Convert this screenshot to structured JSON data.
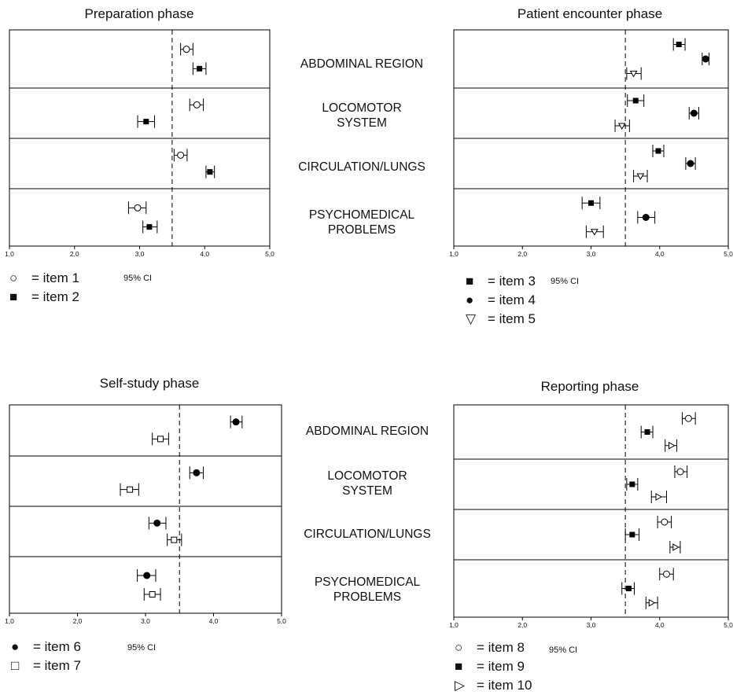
{
  "shared": {
    "categories": [
      "ABDOMINAL REGION",
      "LOCOMOTOR\nSYSTEM",
      "CIRCULATION/LUNGS",
      "PSYCHOMEDICAL\nPROBLEMS"
    ],
    "ci_label": "95% CI",
    "reference_line": 3.5
  },
  "chart_data": [
    {
      "type": "scatter",
      "title": "Preparation phase",
      "xlim": [
        1.0,
        5.0
      ],
      "xticks": [
        "1,0",
        "2,0",
        "3,0",
        "4,0",
        "5,0"
      ],
      "reference_line": 3.5,
      "categories": [
        "ABDOMINAL REGION",
        "LOCOMOTOR SYSTEM",
        "CIRCULATION/LUNGS",
        "PSYCHOMEDICAL PROBLEMS"
      ],
      "series": [
        {
          "name": "item 1",
          "marker": "circle-open",
          "values": [
            3.72,
            3.88,
            3.63,
            2.97
          ],
          "ci_low": [
            3.63,
            3.77,
            3.53,
            2.83
          ],
          "ci_high": [
            3.82,
            3.98,
            3.73,
            3.1
          ]
        },
        {
          "name": "item 2",
          "marker": "square-filled",
          "values": [
            3.92,
            3.1,
            4.08,
            3.15
          ],
          "ci_low": [
            3.82,
            2.97,
            4.02,
            3.05
          ],
          "ci_high": [
            4.02,
            3.23,
            4.15,
            3.27
          ]
        }
      ],
      "legend": [
        {
          "symbol": "○",
          "text": "= item 1"
        },
        {
          "symbol": "■",
          "text": "= item 2"
        }
      ]
    },
    {
      "type": "scatter",
      "title": "Patient encounter phase",
      "xlim": [
        1.0,
        5.0
      ],
      "xticks": [
        "1,0",
        "2,0",
        "3,0",
        "4,0",
        "5,0"
      ],
      "reference_line": 3.5,
      "categories": [
        "ABDOMINAL REGION",
        "LOCOMOTOR SYSTEM",
        "CIRCULATION/LUNGS",
        "PSYCHOMEDICAL PROBLEMS"
      ],
      "series": [
        {
          "name": "item 3",
          "marker": "square-filled",
          "values": [
            4.28,
            3.65,
            3.98,
            3.0
          ],
          "ci_low": [
            4.2,
            3.53,
            3.9,
            2.87
          ],
          "ci_high": [
            4.37,
            3.77,
            4.06,
            3.13
          ]
        },
        {
          "name": "item 4",
          "marker": "circle-filled",
          "values": [
            4.67,
            4.5,
            4.45,
            3.8
          ],
          "ci_low": [
            4.62,
            4.43,
            4.38,
            3.68
          ],
          "ci_high": [
            4.72,
            4.57,
            4.52,
            3.93
          ]
        },
        {
          "name": "item 5",
          "marker": "triangle-down-open",
          "values": [
            3.62,
            3.45,
            3.72,
            3.05
          ],
          "ci_low": [
            3.52,
            3.35,
            3.62,
            2.93
          ],
          "ci_high": [
            3.73,
            3.56,
            3.82,
            3.18
          ]
        }
      ],
      "legend": [
        {
          "symbol": "■",
          "text": "= item 3"
        },
        {
          "symbol": "●",
          "text": "= item 4"
        },
        {
          "symbol": "▽",
          "text": "= item 5"
        }
      ]
    },
    {
      "type": "scatter",
      "title": "Self-study phase",
      "xlim": [
        1.0,
        5.0
      ],
      "xticks": [
        "1,0",
        "2,0",
        "3,0",
        "4,0",
        "5,0"
      ],
      "reference_line": 3.5,
      "categories": [
        "ABDOMINAL REGION",
        "LOCOMOTOR SYSTEM",
        "CIRCULATION/LUNGS",
        "PSYCHOMEDICAL PROBLEMS"
      ],
      "series": [
        {
          "name": "item 6",
          "marker": "circle-filled",
          "values": [
            4.33,
            3.75,
            3.17,
            3.02
          ],
          "ci_low": [
            4.25,
            3.65,
            3.05,
            2.88
          ],
          "ci_high": [
            4.42,
            3.85,
            3.3,
            3.15
          ]
        },
        {
          "name": "item 7",
          "marker": "square-open",
          "values": [
            3.22,
            2.77,
            3.42,
            3.1
          ],
          "ci_low": [
            3.1,
            2.63,
            3.32,
            2.98
          ],
          "ci_high": [
            3.34,
            2.9,
            3.53,
            3.22
          ]
        }
      ],
      "legend": [
        {
          "symbol": "●",
          "text": "= item 6"
        },
        {
          "symbol": "□",
          "text": "= item 7"
        }
      ]
    },
    {
      "type": "scatter",
      "title": "Reporting phase",
      "xlim": [
        1.0,
        5.0
      ],
      "xticks": [
        "1,0",
        "2,0",
        "3,0",
        "4,0",
        "5,0"
      ],
      "reference_line": 3.5,
      "categories": [
        "ABDOMINAL REGION",
        "LOCOMOTOR SYSTEM",
        "CIRCULATION/LUNGS",
        "PSYCHOMEDICAL PROBLEMS"
      ],
      "series": [
        {
          "name": "item 8",
          "marker": "circle-open",
          "values": [
            4.42,
            4.3,
            4.07,
            4.1
          ],
          "ci_low": [
            4.33,
            4.22,
            3.97,
            4.0
          ],
          "ci_high": [
            4.52,
            4.4,
            4.17,
            4.2
          ]
        },
        {
          "name": "item 9",
          "marker": "square-filled",
          "values": [
            3.82,
            3.6,
            3.6,
            3.55
          ],
          "ci_low": [
            3.73,
            3.52,
            3.5,
            3.45
          ],
          "ci_high": [
            3.9,
            3.68,
            3.7,
            3.63
          ]
        },
        {
          "name": "item 10",
          "marker": "triangle-right-open",
          "values": [
            4.17,
            3.98,
            4.23,
            3.88
          ],
          "ci_low": [
            4.08,
            3.88,
            4.15,
            3.8
          ],
          "ci_high": [
            4.25,
            4.1,
            4.3,
            3.97
          ]
        }
      ],
      "legend": [
        {
          "symbol": "○",
          "text": "= item 8"
        },
        {
          "symbol": "■",
          "text": "= item 9"
        },
        {
          "symbol": "▷",
          "text": "= item 10"
        }
      ]
    }
  ]
}
